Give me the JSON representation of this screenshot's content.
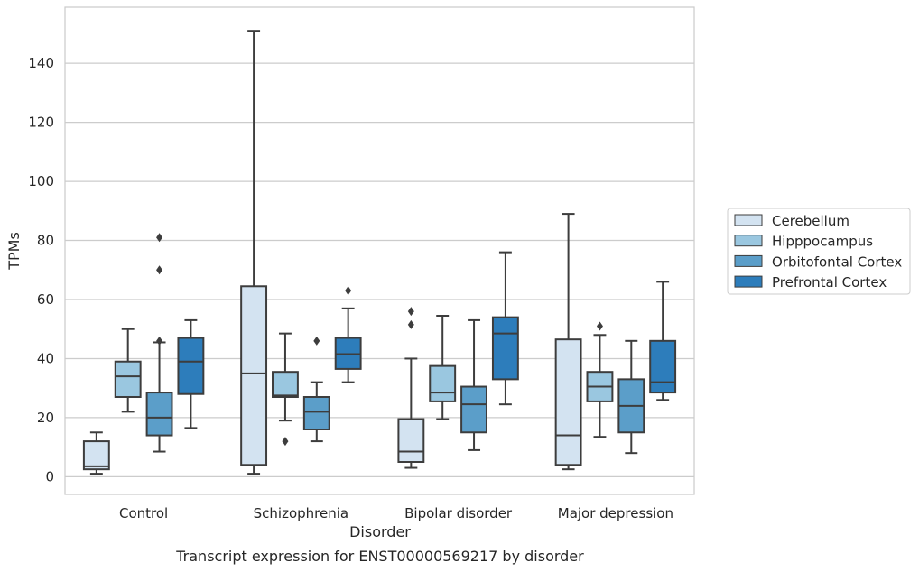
{
  "chart_data": {
    "type": "box",
    "xlabel": "Disorder",
    "ylabel": "TPMs",
    "caption": "Transcript expression for ENST00000569217 by disorder",
    "ylim": [
      -6,
      159
    ],
    "yticks": [
      0,
      20,
      40,
      60,
      80,
      100,
      120,
      140
    ],
    "grid": "horizontal",
    "legend_position": "right",
    "categories": [
      "Control",
      "Schizophrenia",
      "Bipolar disorder",
      "Major depression"
    ],
    "series": [
      {
        "name": "Cerebellum",
        "color": "#d3e3f1",
        "boxes": [
          {
            "whisker_low": 1,
            "q1": 2.5,
            "median": 3.5,
            "q3": 12,
            "whisker_high": 15,
            "outliers": []
          },
          {
            "whisker_low": 1,
            "q1": 4,
            "median": 35,
            "q3": 64.5,
            "whisker_high": 151,
            "outliers": []
          },
          {
            "whisker_low": 3,
            "q1": 5,
            "median": 8.5,
            "q3": 19.5,
            "whisker_high": 40,
            "outliers": [
              51.5,
              56
            ]
          },
          {
            "whisker_low": 2.5,
            "q1": 4,
            "median": 14,
            "q3": 46.5,
            "whisker_high": 89,
            "outliers": []
          }
        ]
      },
      {
        "name": "Hipppocampus",
        "color": "#9ac7e0",
        "boxes": [
          {
            "whisker_low": 22,
            "q1": 27,
            "median": 34,
            "q3": 39,
            "whisker_high": 50,
            "outliers": []
          },
          {
            "whisker_low": 19,
            "q1": 27,
            "median": 27.5,
            "q3": 35.5,
            "whisker_high": 48.5,
            "outliers": [
              12
            ]
          },
          {
            "whisker_low": 19.5,
            "q1": 25.5,
            "median": 28.5,
            "q3": 37.5,
            "whisker_high": 54.5,
            "outliers": []
          },
          {
            "whisker_low": 13.5,
            "q1": 25.5,
            "median": 30.5,
            "q3": 35.5,
            "whisker_high": 48,
            "outliers": [
              51
            ]
          }
        ]
      },
      {
        "name": "Orbitofontal Cortex",
        "color": "#5b9ec9",
        "boxes": [
          {
            "whisker_low": 8.5,
            "q1": 14,
            "median": 20,
            "q3": 28.5,
            "whisker_high": 45.5,
            "outliers": [
              46,
              70,
              81
            ]
          },
          {
            "whisker_low": 12,
            "q1": 16,
            "median": 22,
            "q3": 27,
            "whisker_high": 32,
            "outliers": [
              46
            ]
          },
          {
            "whisker_low": 9,
            "q1": 15,
            "median": 24.5,
            "q3": 30.5,
            "whisker_high": 53,
            "outliers": []
          },
          {
            "whisker_low": 8,
            "q1": 15,
            "median": 24,
            "q3": 33,
            "whisker_high": 46,
            "outliers": []
          }
        ]
      },
      {
        "name": "Prefrontal Cortex",
        "color": "#2d7dbb",
        "boxes": [
          {
            "whisker_low": 16.5,
            "q1": 28,
            "median": 39,
            "q3": 47,
            "whisker_high": 53,
            "outliers": []
          },
          {
            "whisker_low": 32,
            "q1": 36.5,
            "median": 41.5,
            "q3": 47,
            "whisker_high": 57,
            "outliers": [
              63
            ]
          },
          {
            "whisker_low": 24.5,
            "q1": 33,
            "median": 48.5,
            "q3": 54,
            "whisker_high": 76,
            "outliers": []
          },
          {
            "whisker_low": 26,
            "q1": 28.5,
            "median": 32,
            "q3": 46,
            "whisker_high": 66,
            "outliers": []
          }
        ]
      }
    ]
  }
}
